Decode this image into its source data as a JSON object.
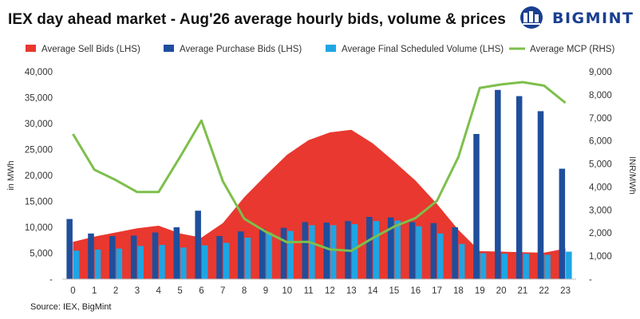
{
  "chart_data": {
    "type": "bar",
    "title": "IEX day ahead market - Aug'26 average hourly bids, volume & prices",
    "source": "Source: IEX, BigMint",
    "brand": "BIGMINT",
    "ylabel_left": "in MWh",
    "ylabel_right": "INR/MWh",
    "ylim_left": [
      0,
      40000
    ],
    "ylim_right": [
      0,
      9000
    ],
    "y_ticks_left": [
      "-",
      "5,000",
      "10,000",
      "15,000",
      "20,000",
      "25,000",
      "30,000",
      "35,000",
      "40,000"
    ],
    "y_ticks_right": [
      "-",
      "1,000",
      "2,000",
      "3,000",
      "4,000",
      "5,000",
      "6,000",
      "7,000",
      "8,000",
      "9,000"
    ],
    "categories": [
      "0",
      "1",
      "2",
      "3",
      "4",
      "5",
      "6",
      "7",
      "8",
      "9",
      "10",
      "11",
      "12",
      "13",
      "14",
      "15",
      "16",
      "17",
      "18",
      "19",
      "20",
      "21",
      "22",
      "23"
    ],
    "grid": false,
    "legend_position": "top",
    "series": [
      {
        "name": "Average Sell Bids (LHS)",
        "type": "area",
        "axis": "left",
        "color": "#e8382f",
        "values": [
          7200,
          8200,
          9000,
          9800,
          10300,
          8800,
          8000,
          10800,
          15800,
          20000,
          24000,
          26800,
          28300,
          28800,
          26200,
          22700,
          19000,
          14500,
          9500,
          5400,
          5300,
          5200,
          5100,
          5900
        ]
      },
      {
        "name": "Average Purchase Bids (LHS)",
        "type": "bar",
        "axis": "left",
        "color": "#1f4e9c",
        "values": [
          11600,
          8800,
          8300,
          8400,
          9000,
          10000,
          13200,
          8300,
          9200,
          9700,
          9900,
          11000,
          10900,
          11200,
          12000,
          11900,
          11000,
          10800,
          10000,
          28000,
          36500,
          35300,
          32400,
          21300
        ]
      },
      {
        "name": "Average Final Scheduled Volume (LHS)",
        "type": "bar",
        "axis": "left",
        "color": "#1fa5e3",
        "values": [
          5500,
          5700,
          5900,
          6400,
          6600,
          6100,
          6500,
          7000,
          8000,
          9000,
          9300,
          10400,
          10400,
          10600,
          11200,
          11300,
          10200,
          8800,
          6800,
          5000,
          4900,
          4900,
          4700,
          5300
        ]
      },
      {
        "name": "Average MCP (RHS)",
        "type": "line",
        "axis": "right",
        "color": "#7dbf4b",
        "values": [
          6300,
          4750,
          4300,
          3780,
          3780,
          5300,
          6880,
          4250,
          2620,
          2060,
          1600,
          1620,
          1290,
          1230,
          1780,
          2280,
          2650,
          3400,
          5300,
          8300,
          8450,
          8550,
          8400,
          7650
        ]
      }
    ]
  }
}
